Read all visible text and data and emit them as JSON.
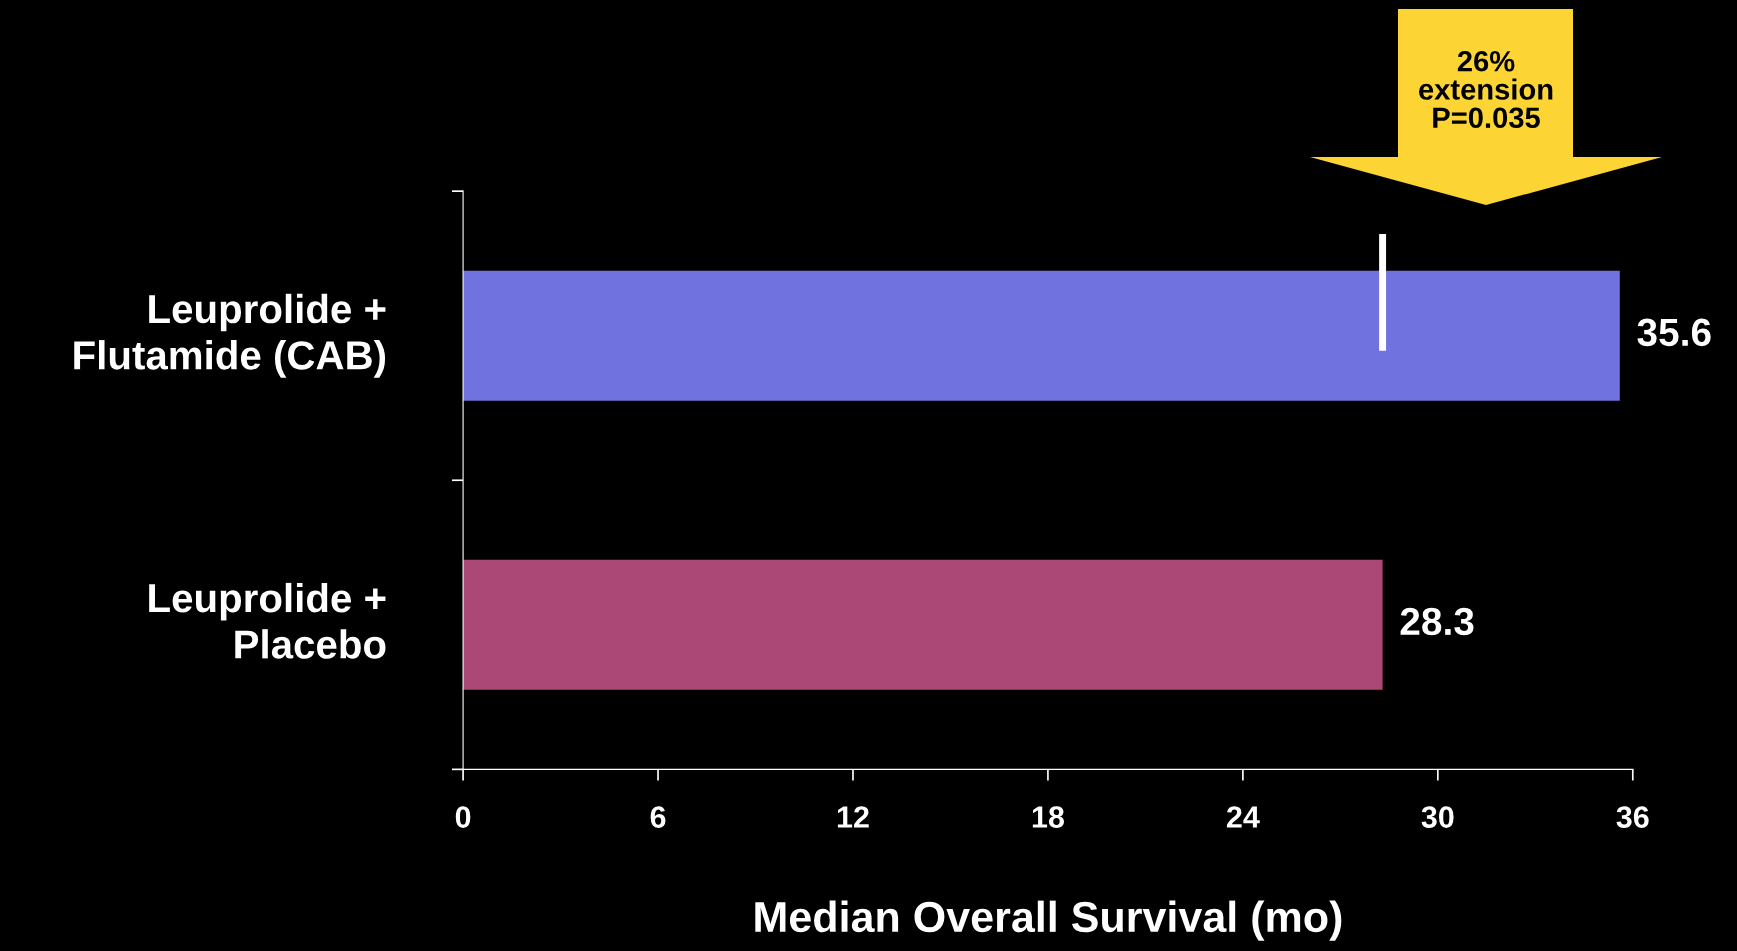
{
  "chart_data": {
    "type": "bar",
    "orientation": "horizontal",
    "categories": [
      "Leuprolide +\nFlutamide (CAB)",
      "Leuprolide +\nPlacebo"
    ],
    "values": [
      35.6,
      28.3
    ],
    "colors": [
      "#6f72df",
      "#ab4876"
    ],
    "xlabel": "Median Overall Survival (mo)",
    "xlim": [
      0,
      36
    ],
    "xticks": [
      0,
      6,
      12,
      18,
      24,
      30,
      36
    ],
    "data_labels": true,
    "grid": false,
    "ref_lines": [
      {
        "axis": "x",
        "value": 28.3,
        "color": "#ffffff"
      }
    ],
    "annotations": [
      "26%\nextension\nP=0.035"
    ]
  }
}
